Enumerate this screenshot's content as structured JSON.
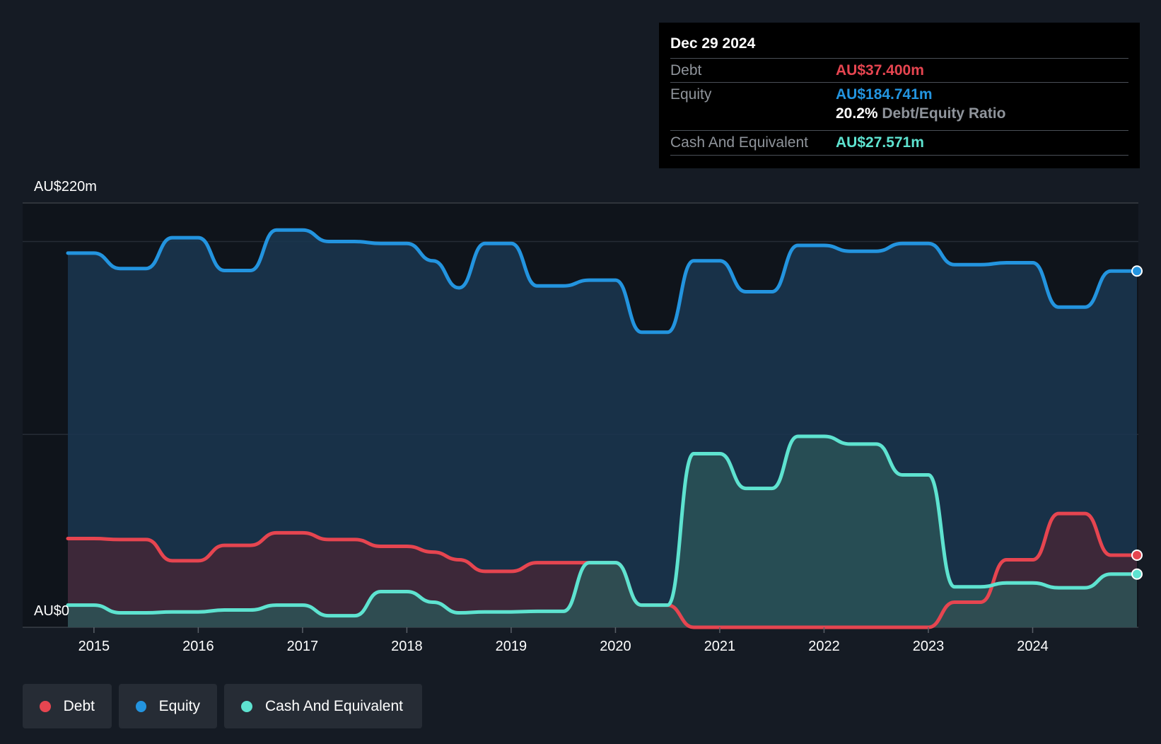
{
  "chart_data": {
    "type": "area",
    "y_axis": {
      "max_label": "AU$220m",
      "min_label": "AU$0",
      "ylim": [
        0,
        220
      ]
    },
    "x_ticks": [
      "2015",
      "2016",
      "2017",
      "2018",
      "2019",
      "2020",
      "2021",
      "2022",
      "2023",
      "2024"
    ],
    "xlim": [
      2014.75,
      2025.0
    ],
    "series": [
      {
        "name": "Equity",
        "color": "#2394df",
        "x": [
          2014.75,
          2015.0,
          2015.25,
          2015.5,
          2015.75,
          2016.0,
          2016.25,
          2016.5,
          2016.75,
          2017.0,
          2017.25,
          2017.5,
          2017.75,
          2018.0,
          2018.25,
          2018.5,
          2018.75,
          2019.0,
          2019.25,
          2019.5,
          2019.75,
          2020.0,
          2020.25,
          2020.5,
          2020.75,
          2021.0,
          2021.25,
          2021.5,
          2021.75,
          2022.0,
          2022.25,
          2022.5,
          2022.75,
          2023.0,
          2023.25,
          2023.5,
          2023.75,
          2024.0,
          2024.25,
          2024.5,
          2024.75,
          2025.0
        ],
        "values": [
          194,
          194,
          186,
          186,
          202,
          202,
          185,
          185,
          206,
          206,
          200,
          200,
          199,
          199,
          190,
          176,
          199,
          199,
          177,
          177,
          180,
          180,
          153,
          153,
          190,
          190,
          174,
          174,
          198,
          198,
          195,
          195,
          199,
          199,
          188,
          188,
          189,
          189,
          166,
          166,
          184.7,
          184.7
        ]
      },
      {
        "name": "Debt",
        "color": "#e64550",
        "x": [
          2014.75,
          2015.0,
          2015.25,
          2015.5,
          2015.75,
          2016.0,
          2016.25,
          2016.5,
          2016.75,
          2017.0,
          2017.25,
          2017.5,
          2017.75,
          2018.0,
          2018.25,
          2018.5,
          2018.75,
          2019.0,
          2019.25,
          2019.5,
          2019.75,
          2020.0,
          2020.25,
          2020.5,
          2020.75,
          2021.0,
          2021.25,
          2021.5,
          2021.75,
          2022.0,
          2022.25,
          2022.5,
          2022.75,
          2023.0,
          2023.25,
          2023.5,
          2023.75,
          2024.0,
          2024.25,
          2024.5,
          2024.75,
          2025.0
        ],
        "values": [
          46,
          46,
          45.5,
          45.5,
          34.5,
          34.5,
          42.5,
          42.5,
          49,
          49,
          45.5,
          45.5,
          42,
          42,
          39,
          35,
          29,
          29,
          33.5,
          33.5,
          33.5,
          33.5,
          11.5,
          11.5,
          0,
          0,
          0,
          0,
          0,
          0,
          0,
          0,
          0,
          0,
          13,
          13,
          35,
          35,
          59,
          59,
          37.4,
          37.4
        ]
      },
      {
        "name": "Cash And Equivalent",
        "color": "#5ee3d0",
        "x": [
          2014.75,
          2015.0,
          2015.25,
          2015.5,
          2015.75,
          2016.0,
          2016.25,
          2016.5,
          2016.75,
          2017.0,
          2017.25,
          2017.5,
          2017.75,
          2018.0,
          2018.25,
          2018.5,
          2018.75,
          2019.0,
          2019.25,
          2019.5,
          2019.75,
          2020.0,
          2020.25,
          2020.5,
          2020.75,
          2021.0,
          2021.25,
          2021.5,
          2021.75,
          2022.0,
          2022.25,
          2022.5,
          2022.75,
          2023.0,
          2023.25,
          2023.5,
          2023.75,
          2024.0,
          2024.25,
          2024.5,
          2024.75,
          2025.0
        ],
        "values": [
          11.5,
          11.5,
          7.5,
          7.5,
          8,
          8,
          9,
          9,
          11.5,
          11.5,
          6,
          6,
          18.5,
          18.5,
          13,
          7.5,
          8,
          8,
          8.3,
          8.3,
          33.5,
          33.5,
          11.5,
          11.5,
          90,
          90,
          72,
          72,
          99,
          99,
          95,
          95,
          79,
          79,
          21,
          21,
          23,
          23,
          20.5,
          20.5,
          27.6,
          27.6
        ]
      }
    ],
    "grid": true,
    "legend_position": "bottom-left"
  },
  "tooltip": {
    "date": "Dec 29 2024",
    "debt_label": "Debt",
    "debt_value": "AU$37.400m",
    "equity_label": "Equity",
    "equity_value": "AU$184.741m",
    "ratio_value": "20.2%",
    "ratio_label": "Debt/Equity Ratio",
    "cash_label": "Cash And Equivalent",
    "cash_value": "AU$27.571m",
    "colors": {
      "debt": "#e64550",
      "equity": "#2394df",
      "cash": "#5ee3d0"
    }
  },
  "legend": [
    {
      "label": "Debt",
      "color": "#e64550"
    },
    {
      "label": "Equity",
      "color": "#2394df"
    },
    {
      "label": "Cash And Equivalent",
      "color": "#5ee3d0"
    }
  ]
}
